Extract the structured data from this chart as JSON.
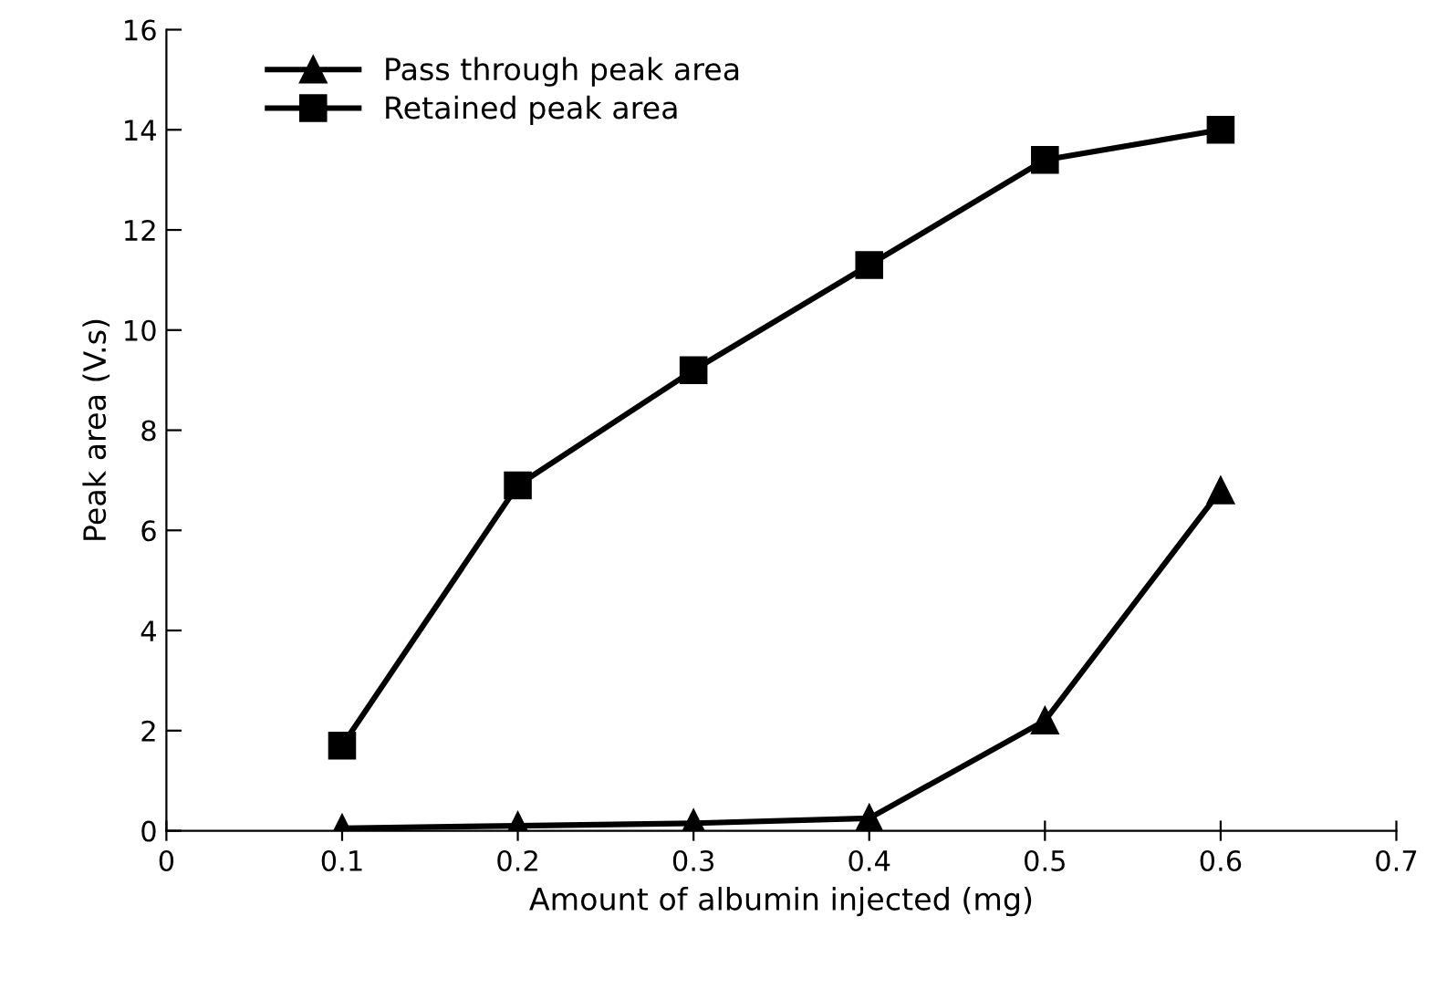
{
  "chart_data": {
    "type": "line",
    "xlabel": "Amount of albumin injected (mg)",
    "ylabel": "Peak area (V.s)",
    "x": [
      0.1,
      0.2,
      0.3,
      0.4,
      0.5,
      0.6
    ],
    "series": [
      {
        "name": "Pass through peak area",
        "color": "#000000",
        "marker": "triangle",
        "values": [
          0.05,
          0.1,
          0.15,
          0.25,
          2.2,
          6.8
        ]
      },
      {
        "name": "Retained peak area",
        "color": "#000000",
        "marker": "square",
        "values": [
          1.7,
          6.9,
          9.2,
          11.3,
          13.4,
          14.0
        ]
      }
    ],
    "xlim": [
      0,
      0.7
    ],
    "xticks": [
      {
        "value": 0,
        "label": "0"
      },
      0.1,
      0.2,
      0.3,
      0.4,
      0.5,
      0.6,
      0.7
    ],
    "ylim": [
      0,
      16
    ],
    "yticks": [
      0,
      2,
      4,
      6,
      8,
      10,
      12,
      14,
      16
    ],
    "grid": false,
    "legend": "top left",
    "line_style": "solid"
  }
}
